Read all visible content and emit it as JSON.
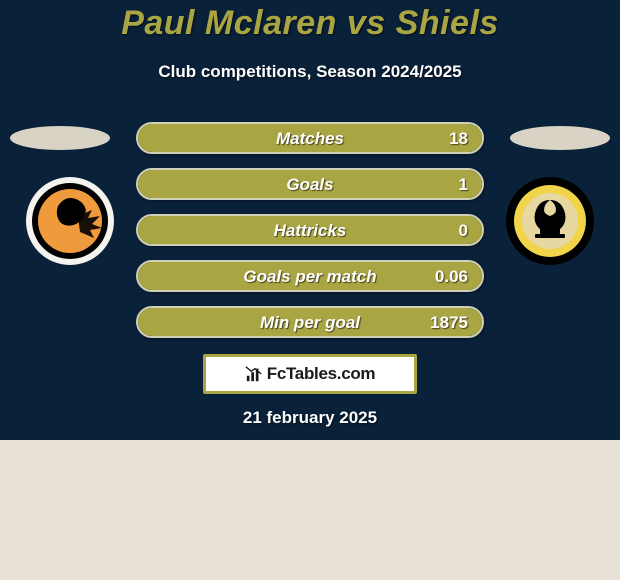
{
  "background_color": "#e8e2d6",
  "graphic_bg_color": "#0a213a",
  "title": {
    "text": "Paul Mclaren vs Shiels",
    "color": "#a9a543"
  },
  "subtitle": {
    "text": "Club competitions, Season 2024/2025",
    "color": "#ffffff"
  },
  "date": {
    "text": "21 february 2025",
    "color": "#ffffff"
  },
  "player_oval_color": "#d8d3c5",
  "crest_left": {
    "ring_outer": "#f5f3ef",
    "ring_band": "#000000",
    "inner_fill": "#f09a3e",
    "detail": "#000000"
  },
  "crest_right": {
    "ring_outer": "#000000",
    "ring_band": "#f2d44a",
    "inner_fill": "#e7d7a0",
    "detail": "#000000"
  },
  "bars": {
    "border_color": "#cfd0b8",
    "fill_color": "#a9a543",
    "label_color": "#ffffff",
    "value_color": "#ffffff",
    "items": [
      {
        "label": "Matches",
        "value": "18",
        "fill_pct": 100
      },
      {
        "label": "Goals",
        "value": "1",
        "fill_pct": 100
      },
      {
        "label": "Hattricks",
        "value": "0",
        "fill_pct": 100
      },
      {
        "label": "Goals per match",
        "value": "0.06",
        "fill_pct": 100
      },
      {
        "label": "Min per goal",
        "value": "1875",
        "fill_pct": 100
      }
    ]
  },
  "brand": {
    "box_bg": "#ffffff",
    "box_border": "#a9a543",
    "text": "FcTables.com",
    "text_color": "#1a1a1a",
    "icon_color": "#1a1a1a"
  }
}
